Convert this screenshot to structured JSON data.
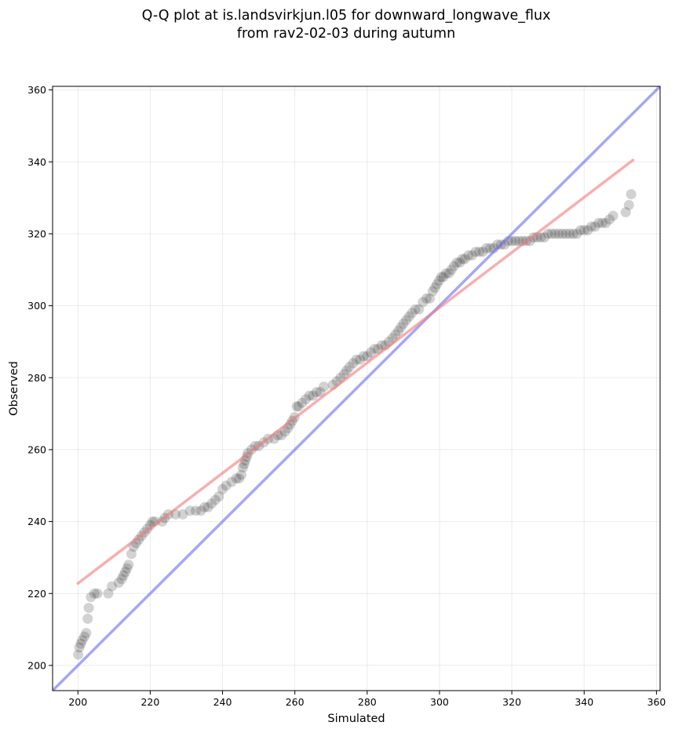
{
  "chart_data": {
    "type": "scatter",
    "title": "Q-Q plot at is.landsvirkjun.l05 for downward_longwave_flux",
    "subtitle": "from rav2-02-03 during autumn",
    "xlabel": "Simulated",
    "ylabel": "Observed",
    "xlim": [
      193,
      361
    ],
    "ylim": [
      193,
      361
    ],
    "xticks": [
      200,
      220,
      240,
      260,
      280,
      300,
      320,
      340,
      360
    ],
    "yticks": [
      200,
      220,
      240,
      260,
      280,
      300,
      320,
      340,
      360
    ],
    "grid": true,
    "legend": "none",
    "colors": {
      "points": "#333333",
      "identity_line": "#6b6bf2",
      "fit_line": "#f27a7a",
      "grid": "#dddddd"
    },
    "identity_line": {
      "from": [
        193,
        193
      ],
      "to": [
        361,
        361
      ]
    },
    "fit_line": {
      "from": [
        200,
        222.8
      ],
      "to": [
        353.5,
        340.5
      ]
    },
    "points": [
      [
        200.1,
        203
      ],
      [
        200.4,
        205
      ],
      [
        200.8,
        206
      ],
      [
        201.2,
        207
      ],
      [
        201.8,
        208
      ],
      [
        202.3,
        209
      ],
      [
        202.7,
        213
      ],
      [
        203,
        216
      ],
      [
        203.6,
        219
      ],
      [
        204.6,
        220
      ],
      [
        205.4,
        220
      ],
      [
        208.4,
        220
      ],
      [
        209.4,
        222
      ],
      [
        211.3,
        223
      ],
      [
        212.1,
        224
      ],
      [
        212.6,
        225
      ],
      [
        213.1,
        226
      ],
      [
        213.6,
        227
      ],
      [
        214,
        228
      ],
      [
        214.8,
        231
      ],
      [
        215.4,
        233
      ],
      [
        216.1,
        234
      ],
      [
        216.8,
        235
      ],
      [
        217.6,
        236
      ],
      [
        218.4,
        237
      ],
      [
        219.2,
        238
      ],
      [
        220,
        239
      ],
      [
        220.6,
        240
      ],
      [
        221.3,
        240
      ],
      [
        223.3,
        240
      ],
      [
        224,
        241
      ],
      [
        225,
        242
      ],
      [
        227,
        242
      ],
      [
        229,
        242
      ],
      [
        231,
        243
      ],
      [
        232.6,
        243
      ],
      [
        234,
        243
      ],
      [
        235,
        244
      ],
      [
        236,
        244
      ],
      [
        237,
        245
      ],
      [
        238,
        246
      ],
      [
        239,
        247
      ],
      [
        240,
        249
      ],
      [
        241,
        250
      ],
      [
        242.5,
        251
      ],
      [
        243.8,
        252
      ],
      [
        244.6,
        252
      ],
      [
        245.2,
        253
      ],
      [
        245.6,
        255
      ],
      [
        246,
        256
      ],
      [
        246.3,
        257
      ],
      [
        246.7,
        258
      ],
      [
        247,
        259
      ],
      [
        248,
        260
      ],
      [
        249,
        261
      ],
      [
        250,
        261
      ],
      [
        251.4,
        262
      ],
      [
        252.6,
        263
      ],
      [
        254.3,
        263
      ],
      [
        255.3,
        264
      ],
      [
        256.3,
        264
      ],
      [
        257.3,
        265
      ],
      [
        258.1,
        266
      ],
      [
        258.7,
        267
      ],
      [
        259.3,
        268
      ],
      [
        259.9,
        269
      ],
      [
        260.5,
        272
      ],
      [
        261,
        272
      ],
      [
        262,
        273
      ],
      [
        263,
        274
      ],
      [
        264,
        275
      ],
      [
        265,
        275
      ],
      [
        266,
        276
      ],
      [
        267,
        276
      ],
      [
        268,
        277.5
      ],
      [
        270.5,
        278
      ],
      [
        271.6,
        279
      ],
      [
        272.6,
        280
      ],
      [
        273.6,
        281
      ],
      [
        274.3,
        282
      ],
      [
        275.1,
        283
      ],
      [
        276.1,
        284
      ],
      [
        277,
        285
      ],
      [
        278,
        285
      ],
      [
        279,
        286
      ],
      [
        280,
        286
      ],
      [
        281,
        287
      ],
      [
        282,
        288
      ],
      [
        283,
        288
      ],
      [
        284,
        289
      ],
      [
        285,
        289
      ],
      [
        286,
        290
      ],
      [
        287,
        291
      ],
      [
        287.8,
        292
      ],
      [
        288.6,
        293
      ],
      [
        289.3,
        294
      ],
      [
        290,
        295
      ],
      [
        290.8,
        296
      ],
      [
        291.6,
        297
      ],
      [
        292.4,
        298
      ],
      [
        293.3,
        299
      ],
      [
        294.3,
        299
      ],
      [
        295.4,
        301
      ],
      [
        296.4,
        302
      ],
      [
        297.3,
        302
      ],
      [
        298.1,
        304
      ],
      [
        298.7,
        305
      ],
      [
        299.3,
        306
      ],
      [
        299.9,
        307
      ],
      [
        300.5,
        308
      ],
      [
        301.1,
        308
      ],
      [
        301.8,
        309
      ],
      [
        302.6,
        309
      ],
      [
        303.3,
        310
      ],
      [
        304,
        311
      ],
      [
        304.8,
        312
      ],
      [
        305.6,
        312
      ],
      [
        306.3,
        313
      ],
      [
        307,
        313
      ],
      [
        308,
        314
      ],
      [
        309,
        314
      ],
      [
        310,
        315
      ],
      [
        311,
        315
      ],
      [
        312,
        315
      ],
      [
        313,
        316
      ],
      [
        314,
        316
      ],
      [
        315,
        316
      ],
      [
        316,
        317
      ],
      [
        317,
        317
      ],
      [
        318,
        317
      ],
      [
        319,
        318
      ],
      [
        320,
        318
      ],
      [
        321,
        318
      ],
      [
        322,
        318
      ],
      [
        323,
        318
      ],
      [
        324,
        318
      ],
      [
        325,
        318
      ],
      [
        326,
        319
      ],
      [
        327,
        319
      ],
      [
        328,
        319
      ],
      [
        329,
        319
      ],
      [
        330,
        320
      ],
      [
        331,
        320
      ],
      [
        332,
        320
      ],
      [
        333,
        320
      ],
      [
        334,
        320
      ],
      [
        335,
        320
      ],
      [
        336,
        320
      ],
      [
        337,
        320
      ],
      [
        338,
        320
      ],
      [
        339,
        321
      ],
      [
        340,
        321
      ],
      [
        341,
        321
      ],
      [
        342,
        322
      ],
      [
        343,
        322
      ],
      [
        344,
        323
      ],
      [
        345,
        323
      ],
      [
        346,
        323
      ],
      [
        347,
        324
      ],
      [
        348,
        325
      ],
      [
        351.5,
        326
      ],
      [
        352.4,
        328
      ],
      [
        353,
        331
      ]
    ]
  }
}
